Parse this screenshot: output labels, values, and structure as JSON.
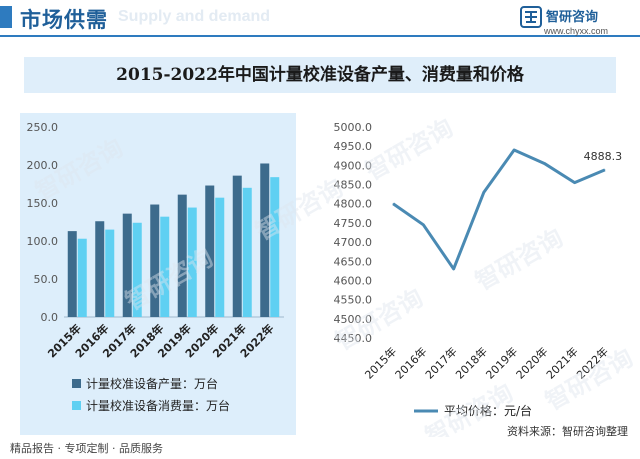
{
  "header": {
    "title": "市场供需",
    "subtitle": "Supply and demand",
    "logo_name": "智研咨询",
    "logo_url": "www.chyxx.com"
  },
  "main_title": "2015-2022年中国计量校准设备产量、消费量和价格",
  "watermark_text": "智研咨询",
  "chart_data": [
    {
      "type": "bar",
      "categories": [
        "2015年",
        "2016年",
        "2017年",
        "2018年",
        "2019年",
        "2020年",
        "2021年",
        "2022年"
      ],
      "series": [
        {
          "name": "计量校准设备产量：万台",
          "color": "#3d6b8c",
          "values": [
            113,
            126,
            136,
            148,
            161,
            173,
            186,
            202
          ]
        },
        {
          "name": "计量校准设备消费量：万台",
          "color": "#5fd0f2",
          "values": [
            103,
            115,
            124,
            132,
            144,
            157,
            170,
            184
          ]
        }
      ],
      "yticks": [
        "250.0",
        "200.0",
        "150.0",
        "100.0",
        "50.0",
        "0.0"
      ],
      "ylim": [
        0,
        250
      ],
      "legend_position": "bottom"
    },
    {
      "type": "line",
      "categories": [
        "2015年",
        "2016年",
        "2017年",
        "2018年",
        "2019年",
        "2020年",
        "2021年",
        "2022年"
      ],
      "series": [
        {
          "name": "平均价格：元/台",
          "color": "#4a8ab3",
          "values": [
            4800,
            4745,
            4630,
            4830,
            4940,
            4905,
            4855,
            4888.3
          ]
        }
      ],
      "data_label": "4888.3",
      "yticks": [
        "5000.0",
        "4950.0",
        "4900.0",
        "4850.0",
        "4800.0",
        "4750.0",
        "4700.0",
        "4650.0",
        "4600.0",
        "4550.0",
        "4500.0",
        "4450.0"
      ],
      "ylim": [
        4450,
        5000
      ],
      "legend_position": "bottom"
    }
  ],
  "footer": {
    "text": "精品报告 · 专项定制 · 品质服务",
    "source": "资料来源：智研咨询整理"
  }
}
